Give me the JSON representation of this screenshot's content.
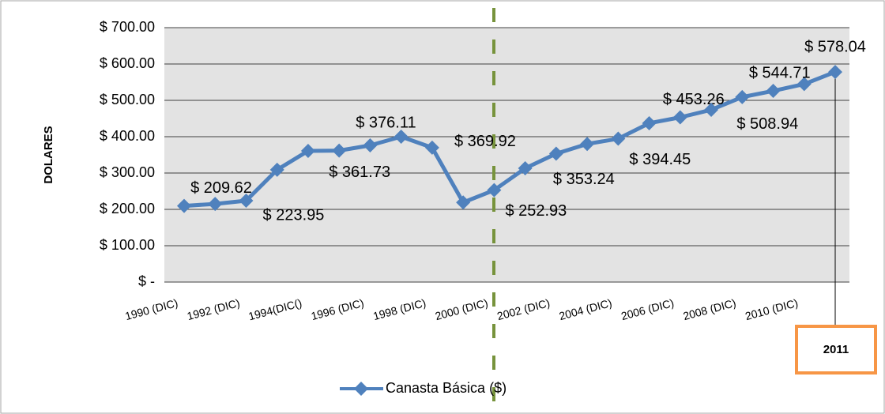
{
  "chart_data": {
    "type": "line",
    "y_label": "DOLARES",
    "categories": [
      "1990 (DIC)",
      null,
      "1992 (DIC)",
      null,
      "1994(DIC()",
      null,
      "1996 (DIC)",
      null,
      "1998 (DIC)",
      null,
      "2000 (DIC)",
      null,
      "2002 (DIC)",
      null,
      "2004 (DIC)",
      null,
      "2006 (DIC)",
      null,
      "2008 (DIC)",
      null,
      "2010 (DIC)",
      null
    ],
    "series": [
      {
        "name": "Canasta Básica ($)",
        "color": "#4f81bd",
        "values": [
          209.62,
          215,
          223.95,
          309,
          361,
          361.73,
          376.11,
          400,
          369.92,
          219,
          252.93,
          313,
          353.24,
          380,
          394.45,
          437,
          453.26,
          474,
          508.94,
          526,
          544.71,
          578.04
        ],
        "value_labels": [
          "$ 209.62",
          null,
          "$ 223.95",
          null,
          null,
          "$ 361.73",
          "$ 376.11",
          null,
          "$ 369.92",
          null,
          "$ 252.93",
          null,
          "$ 353.24",
          null,
          "$ 394.45",
          null,
          "$ 453.26",
          null,
          "$ 508.94",
          null,
          "$ 544.71",
          "$ 578.04"
        ]
      }
    ],
    "ylim": [
      0,
      700
    ],
    "yticks": [
      {
        "value": 0,
        "label": "$ -"
      },
      {
        "value": 100,
        "label": "$ 100.00"
      },
      {
        "value": 200,
        "label": "$ 200.00"
      },
      {
        "value": 300,
        "label": "$ 300.00"
      },
      {
        "value": 400,
        "label": "$ 400.00"
      },
      {
        "value": 500,
        "label": "$ 500.00"
      },
      {
        "value": 600,
        "label": "$ 600.00"
      },
      {
        "value": 700,
        "label": "$ 700.00"
      }
    ],
    "grid": true,
    "legend": "bottom",
    "annotation": "2011"
  }
}
